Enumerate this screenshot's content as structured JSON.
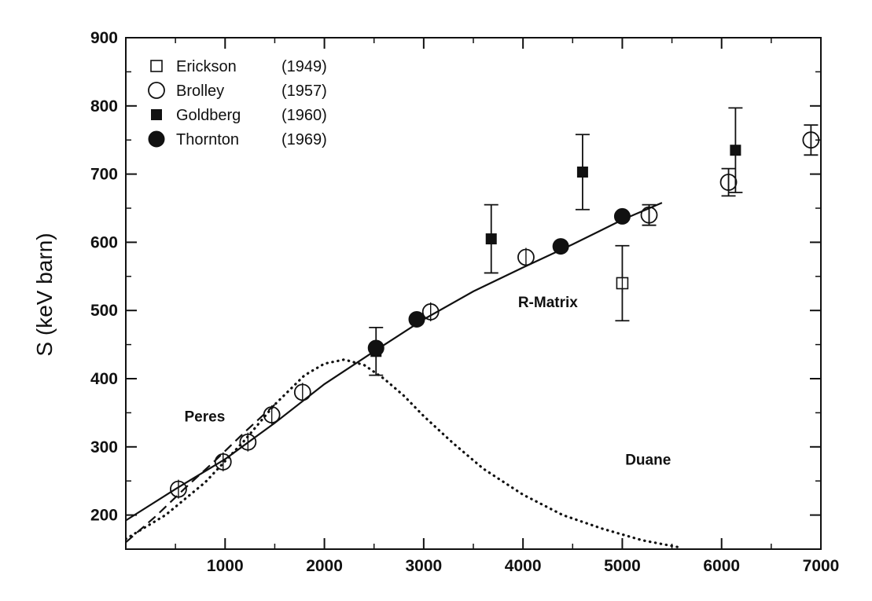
{
  "chart_data": {
    "type": "scatter",
    "title": "",
    "xlabel": "",
    "ylabel": "S (keV barn)",
    "xlim": [
      0,
      7000
    ],
    "ylim": [
      150,
      900
    ],
    "xticks": [
      1000,
      2000,
      3000,
      4000,
      5000,
      6000,
      7000
    ],
    "yticks": [
      200,
      300,
      400,
      500,
      600,
      700,
      800,
      900
    ],
    "grid": false,
    "legend_position": "top-left",
    "series": [
      {
        "name": "Erickson",
        "year": "(1949)",
        "marker": "open-square",
        "points": [
          {
            "x": 5000,
            "y": 540,
            "err": 55
          }
        ]
      },
      {
        "name": "Brolley",
        "year": "(1957)",
        "marker": "open-circle",
        "points": [
          {
            "x": 530,
            "y": 238,
            "err": 0
          },
          {
            "x": 980,
            "y": 278,
            "err": 0
          },
          {
            "x": 1230,
            "y": 307,
            "err": 0
          },
          {
            "x": 1470,
            "y": 347,
            "err": 0
          },
          {
            "x": 1780,
            "y": 380,
            "err": 0
          },
          {
            "x": 3070,
            "y": 498,
            "err": 0
          },
          {
            "x": 4030,
            "y": 578,
            "err": 0
          },
          {
            "x": 5270,
            "y": 640,
            "err": 15
          },
          {
            "x": 6070,
            "y": 688,
            "err": 20
          },
          {
            "x": 6900,
            "y": 750,
            "err": 22
          }
        ]
      },
      {
        "name": "Goldberg",
        "year": "(1960)",
        "marker": "filled-square",
        "points": [
          {
            "x": 2520,
            "y": 440,
            "err": 35
          },
          {
            "x": 3680,
            "y": 605,
            "err": 50
          },
          {
            "x": 4600,
            "y": 703,
            "err": 55
          },
          {
            "x": 6140,
            "y": 735,
            "err": 62
          }
        ]
      },
      {
        "name": "Thornton",
        "year": "(1969)",
        "marker": "filled-circle",
        "points": [
          {
            "x": 2520,
            "y": 445,
            "err": 0
          },
          {
            "x": 2930,
            "y": 487,
            "err": 0
          },
          {
            "x": 4380,
            "y": 594,
            "err": 0
          },
          {
            "x": 5000,
            "y": 638,
            "err": 0
          }
        ]
      }
    ],
    "curves": [
      {
        "name": "R-Matrix",
        "style": "solid",
        "x": [
          0,
          500,
          1000,
          1500,
          2000,
          2500,
          3000,
          3500,
          4000,
          4500,
          5000,
          5400
        ],
        "y": [
          192,
          238,
          282,
          335,
          392,
          440,
          487,
          528,
          563,
          597,
          633,
          658
        ]
      },
      {
        "name": "Peres",
        "style": "dashed",
        "x": [
          0,
          300,
          600,
          900,
          1200,
          1500
        ],
        "y": [
          160,
          198,
          240,
          280,
          322,
          362
        ]
      },
      {
        "name": "Duane",
        "style": "dotted",
        "x": [
          0,
          400,
          800,
          1200,
          1500,
          1800,
          2000,
          2200,
          2400,
          2600,
          2800,
          3000,
          3300,
          3600,
          4000,
          4400,
          4800,
          5200,
          5600
        ],
        "y": [
          165,
          200,
          248,
          310,
          362,
          405,
          422,
          428,
          420,
          400,
          375,
          345,
          305,
          268,
          230,
          200,
          180,
          163,
          152
        ]
      }
    ],
    "annotations": [
      {
        "text": "R-Matrix",
        "x": 3950,
        "y": 505
      },
      {
        "text": "Peres",
        "x": 590,
        "y": 337
      },
      {
        "text": "Duane",
        "x": 5030,
        "y": 274
      }
    ]
  }
}
